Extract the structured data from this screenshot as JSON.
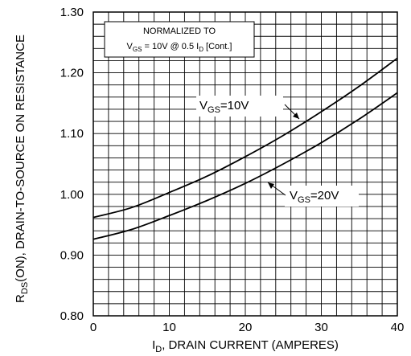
{
  "chart_data": {
    "type": "line",
    "title": "",
    "xlabel": {
      "prefix": "I",
      "sub": "D",
      "rest": ", DRAIN CURRENT (AMPERES)"
    },
    "ylabel": {
      "prefix": "R",
      "sub": "DS",
      "rest": "(ON), DRAIN-TO-SOURCE ON RESISTANCE"
    },
    "xlim": [
      0,
      40
    ],
    "ylim": [
      0.8,
      1.3
    ],
    "x_ticks": [
      "0",
      "10",
      "20",
      "30",
      "40"
    ],
    "y_ticks": [
      "0.80",
      "0.90",
      "1.00",
      "1.10",
      "1.20",
      "1.30"
    ],
    "grid": true,
    "annotation": {
      "line1": "NORMALIZED TO",
      "line2_v": "V",
      "line2_sub": "GS",
      "line2_mid": " = 10V @ 0.5 I",
      "line2_sub2": "D",
      "line2_end": " [Cont.]"
    },
    "series": [
      {
        "name": "VGS=10V",
        "label_v": "V",
        "label_sub": "GS",
        "label_rest": "=10V",
        "x": [
          0,
          5,
          10,
          15,
          20,
          25,
          30,
          35,
          40
        ],
        "y": [
          0.962,
          0.978,
          1.003,
          1.03,
          1.062,
          1.097,
          1.136,
          1.178,
          1.224
        ]
      },
      {
        "name": "VGS=20V",
        "label_v": "V",
        "label_sub": "GS",
        "label_rest": "=20V",
        "x": [
          0,
          5,
          10,
          15,
          20,
          25,
          30,
          35,
          40
        ],
        "y": [
          0.926,
          0.942,
          0.965,
          0.99,
          1.018,
          1.05,
          1.085,
          1.124,
          1.167
        ]
      }
    ]
  }
}
